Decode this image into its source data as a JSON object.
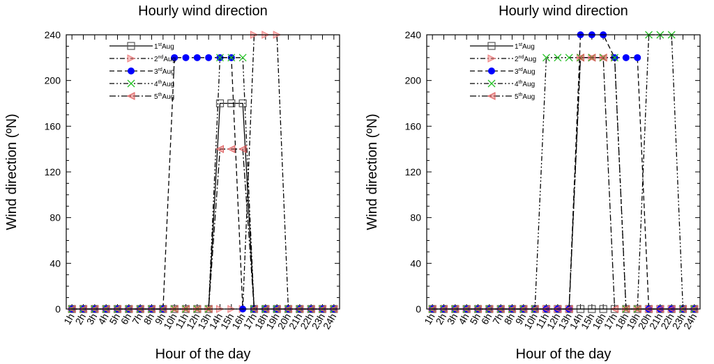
{
  "chart_data": [
    {
      "type": "line",
      "title": "Hourly wind direction",
      "xlabel": "Hour of the day",
      "ylabel": "Wind direction (ºN)",
      "categories": [
        "1h",
        "2h",
        "3h",
        "4h",
        "5h",
        "6h",
        "7h",
        "8h",
        "9h",
        "10h",
        "11h",
        "12h",
        "13h",
        "14h",
        "15h",
        "16h",
        "17h",
        "18h",
        "19h",
        "20h",
        "21h",
        "22h",
        "23h",
        "24h"
      ],
      "ylim": [
        0,
        240
      ],
      "yticks": [
        0,
        40,
        80,
        120,
        160,
        200,
        240
      ],
      "legend_position": "top-left",
      "grid": false,
      "series": [
        {
          "name": "1st Aug",
          "name_base": "1",
          "name_sup": "st",
          "name_tail": "Aug",
          "marker": "square",
          "dash": "",
          "color": "#555555",
          "values": [
            0,
            0,
            0,
            0,
            0,
            0,
            0,
            0,
            0,
            0,
            0,
            0,
            0,
            180,
            180,
            180,
            0,
            0,
            0,
            0,
            0,
            0,
            0,
            0
          ]
        },
        {
          "name": "2nd Aug",
          "name_base": "2",
          "name_sup": "nd",
          "name_tail": "Aug",
          "marker": "triangle-right",
          "dash": "7,3,2,3",
          "color": "#f08080",
          "values": [
            0,
            0,
            0,
            0,
            0,
            0,
            0,
            0,
            0,
            0,
            0,
            0,
            0,
            0,
            0,
            0,
            240,
            240,
            240,
            0,
            0,
            0,
            0,
            0
          ]
        },
        {
          "name": "3rd Aug",
          "name_base": "3",
          "name_sup": "rd",
          "name_tail": "Aug",
          "marker": "circle",
          "dash": "7,4",
          "color": "#0000ff",
          "values": [
            0,
            0,
            0,
            0,
            0,
            0,
            0,
            0,
            0,
            220,
            220,
            220,
            220,
            220,
            220,
            0,
            0,
            0,
            0,
            0,
            0,
            0,
            0,
            0
          ]
        },
        {
          "name": "4th Aug",
          "name_base": "4",
          "name_sup": "th",
          "name_tail": "Aug",
          "marker": "x",
          "dash": "7,3,2,3,2,3",
          "color": "#22c022",
          "values": [
            0,
            0,
            0,
            0,
            0,
            0,
            0,
            0,
            0,
            0,
            0,
            0,
            0,
            220,
            220,
            220,
            0,
            0,
            0,
            0,
            0,
            0,
            0,
            0
          ]
        },
        {
          "name": "5th Aug",
          "name_base": "5",
          "name_sup": "th",
          "name_tail": "Aug",
          "marker": "triangle-left",
          "dash": "9,3,2,3",
          "color": "#e06060",
          "values": [
            0,
            0,
            0,
            0,
            0,
            0,
            0,
            0,
            0,
            0,
            0,
            0,
            0,
            140,
            140,
            140,
            0,
            0,
            0,
            0,
            0,
            0,
            0,
            0
          ]
        }
      ]
    },
    {
      "type": "line",
      "title": "Hourly wind direction",
      "xlabel": "Hour of the day",
      "ylabel": "Wind direction (ºN)",
      "categories": [
        "1h",
        "2h",
        "3h",
        "4h",
        "5h",
        "6h",
        "7h",
        "8h",
        "9h",
        "10h",
        "11h",
        "12h",
        "13h",
        "14h",
        "15h",
        "16h",
        "17h",
        "18h",
        "19h",
        "20h",
        "21h",
        "22h",
        "23h",
        "24h"
      ],
      "ylim": [
        0,
        240
      ],
      "yticks": [
        0,
        40,
        80,
        120,
        160,
        200,
        240
      ],
      "legend_position": "top-left",
      "grid": false,
      "series": [
        {
          "name": "1st Aug",
          "name_base": "1",
          "name_sup": "st",
          "name_tail": "Aug",
          "marker": "square",
          "dash": "",
          "color": "#555555",
          "values": [
            0,
            0,
            0,
            0,
            0,
            0,
            0,
            0,
            0,
            0,
            0,
            0,
            0,
            0,
            0,
            0,
            0,
            0,
            0,
            0,
            0,
            0,
            0,
            0
          ]
        },
        {
          "name": "2nd Aug",
          "name_base": "2",
          "name_sup": "nd",
          "name_tail": "Aug",
          "marker": "triangle-right",
          "dash": "7,3,2,3",
          "color": "#f08080",
          "values": [
            0,
            0,
            0,
            0,
            0,
            0,
            0,
            0,
            0,
            0,
            0,
            0,
            0,
            220,
            220,
            220,
            220,
            0,
            0,
            0,
            0,
            0,
            0,
            0
          ]
        },
        {
          "name": "3rd Aug",
          "name_base": "3",
          "name_sup": "rd",
          "name_tail": "Aug",
          "marker": "circle",
          "dash": "7,4",
          "color": "#0000ff",
          "values": [
            0,
            0,
            0,
            0,
            0,
            0,
            0,
            0,
            0,
            0,
            0,
            0,
            0,
            240,
            240,
            240,
            220,
            220,
            220,
            0,
            0,
            0,
            0,
            0
          ]
        },
        {
          "name": "4th Aug",
          "name_base": "4",
          "name_sup": "th",
          "name_tail": "Aug",
          "marker": "x",
          "dash": "7,3,2,3,2,3",
          "color": "#22c022",
          "values": [
            0,
            0,
            0,
            0,
            0,
            0,
            0,
            0,
            0,
            0,
            220,
            220,
            220,
            220,
            220,
            220,
            220,
            0,
            0,
            240,
            240,
            240,
            0,
            0
          ]
        },
        {
          "name": "5th Aug",
          "name_base": "5",
          "name_sup": "th",
          "name_tail": "Aug",
          "marker": "triangle-left",
          "dash": "9,3,2,3",
          "color": "#e06060",
          "values": [
            0,
            0,
            0,
            0,
            0,
            0,
            0,
            0,
            0,
            0,
            0,
            0,
            0,
            220,
            220,
            220,
            0,
            0,
            0,
            0,
            0,
            0,
            0,
            0
          ]
        }
      ]
    }
  ]
}
